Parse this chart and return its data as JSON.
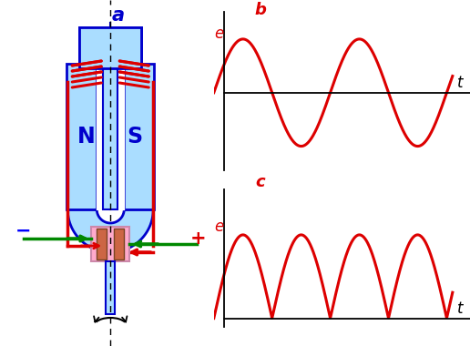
{
  "title_a": "a",
  "title_b": "b",
  "title_c": "c",
  "label_e": "e",
  "label_t": "t",
  "label_N": "N",
  "label_S": "S",
  "label_minus": "−",
  "label_plus": "+",
  "bg_color": "#ffffff",
  "blue_dark": "#0000cc",
  "blue_light": "#aaddff",
  "red_color": "#dd0000",
  "green_color": "#008800",
  "pink_color": "#ffaacc",
  "black_color": "#000000"
}
